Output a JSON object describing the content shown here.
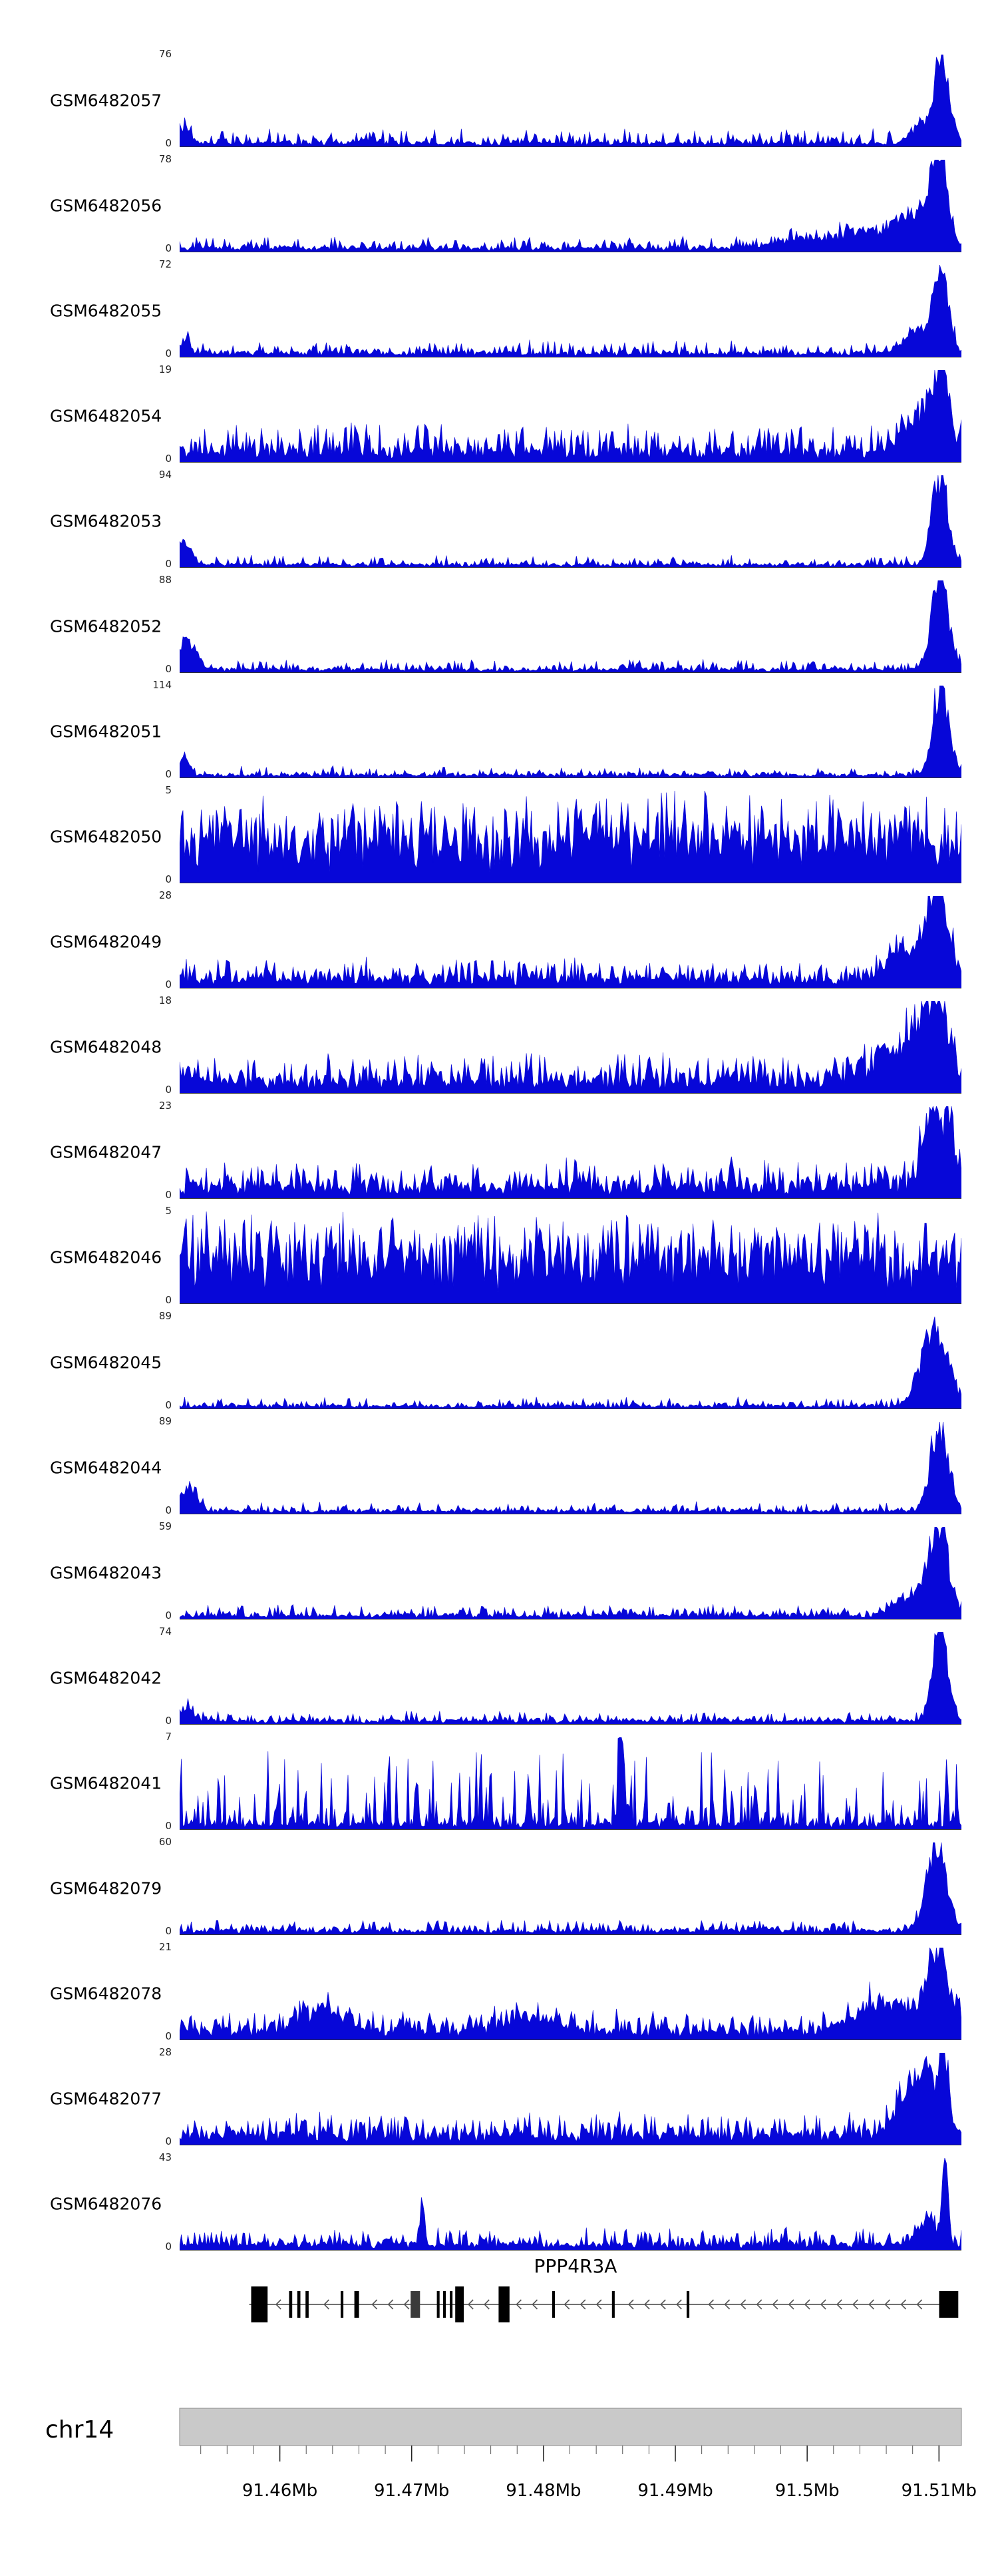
{
  "chart_data": {
    "type": "area",
    "description": "Genome browser read-coverage tracks (blue filled signal) for 21 GEO samples over chr14 ~91.45-91.51 Mb at the PPP4R3A locus, with gene model and genomic axis below.",
    "signal_color": "#0707d8",
    "y_zero_label": "0",
    "tracks": [
      {
        "label": "GSM6482057",
        "ymax": "76",
        "seed": 1,
        "base": 0.05,
        "spike_amp": 0.14,
        "spike_pow": 4.0,
        "peaks": [
          {
            "pos": 0.975,
            "w": 0.009,
            "h": 1.05
          },
          {
            "pos": 0.948,
            "w": 0.012,
            "h": 0.22
          },
          {
            "pos": 0.007,
            "w": 0.006,
            "h": 0.18
          }
        ]
      },
      {
        "label": "GSM6482056",
        "ymax": "78",
        "seed": 2,
        "base": 0.05,
        "spike_amp": 0.12,
        "spike_pow": 4.0,
        "peaks": [
          {
            "pos": 0.972,
            "w": 0.01,
            "h": 1.05
          },
          {
            "pos": 0.938,
            "w": 0.025,
            "h": 0.38
          },
          {
            "pos": 0.87,
            "w": 0.03,
            "h": 0.18
          },
          {
            "pos": 0.79,
            "w": 0.025,
            "h": 0.1
          }
        ]
      },
      {
        "label": "GSM6482055",
        "ymax": "72",
        "seed": 3,
        "base": 0.05,
        "spike_amp": 0.13,
        "spike_pow": 4.0,
        "peaks": [
          {
            "pos": 0.974,
            "w": 0.009,
            "h": 1.05
          },
          {
            "pos": 0.945,
            "w": 0.015,
            "h": 0.28
          },
          {
            "pos": 0.006,
            "w": 0.006,
            "h": 0.15
          }
        ]
      },
      {
        "label": "GSM6482054",
        "ymax": "19",
        "seed": 4,
        "base": 0.13,
        "spike_amp": 0.3,
        "spike_pow": 2.6,
        "peaks": [
          {
            "pos": 0.976,
            "w": 0.008,
            "h": 1.0
          },
          {
            "pos": 0.95,
            "w": 0.02,
            "h": 0.45
          }
        ]
      },
      {
        "label": "GSM6482053",
        "ymax": "94",
        "seed": 5,
        "base": 0.035,
        "spike_amp": 0.1,
        "spike_pow": 4.5,
        "peaks": [
          {
            "pos": 0.973,
            "w": 0.01,
            "h": 1.05
          },
          {
            "pos": 0.006,
            "w": 0.008,
            "h": 0.3
          }
        ]
      },
      {
        "label": "GSM6482052",
        "ymax": "88",
        "seed": 6,
        "base": 0.04,
        "spike_amp": 0.1,
        "spike_pow": 4.5,
        "peaks": [
          {
            "pos": 0.973,
            "w": 0.011,
            "h": 1.05
          },
          {
            "pos": 0.01,
            "w": 0.012,
            "h": 0.3
          }
        ]
      },
      {
        "label": "GSM6482051",
        "ymax": "114",
        "seed": 7,
        "base": 0.035,
        "spike_amp": 0.09,
        "spike_pow": 5.0,
        "peaks": [
          {
            "pos": 0.974,
            "w": 0.01,
            "h": 1.05
          },
          {
            "pos": 0.006,
            "w": 0.006,
            "h": 0.22
          }
        ]
      },
      {
        "label": "GSM6482050",
        "ymax": "5",
        "seed": 8,
        "base": 0.42,
        "spike_amp": 0.55,
        "spike_pow": 1.25,
        "peaks": []
      },
      {
        "label": "GSM6482049",
        "ymax": "28",
        "seed": 9,
        "base": 0.11,
        "spike_amp": 0.22,
        "spike_pow": 2.6,
        "peaks": [
          {
            "pos": 0.97,
            "w": 0.013,
            "h": 1.0
          },
          {
            "pos": 0.93,
            "w": 0.025,
            "h": 0.3
          }
        ]
      },
      {
        "label": "GSM6482048",
        "ymax": "18",
        "seed": 10,
        "base": 0.14,
        "spike_amp": 0.3,
        "spike_pow": 2.3,
        "peaks": [
          {
            "pos": 0.968,
            "w": 0.015,
            "h": 0.85
          },
          {
            "pos": 0.93,
            "w": 0.03,
            "h": 0.45
          }
        ]
      },
      {
        "label": "GSM6482047",
        "ymax": "23",
        "seed": 11,
        "base": 0.14,
        "spike_amp": 0.3,
        "spike_pow": 2.3,
        "peaks": [
          {
            "pos": 0.962,
            "w": 0.012,
            "h": 0.9
          },
          {
            "pos": 0.985,
            "w": 0.007,
            "h": 0.8
          }
        ]
      },
      {
        "label": "GSM6482046",
        "ymax": "5",
        "seed": 12,
        "base": 0.42,
        "spike_amp": 0.55,
        "spike_pow": 1.25,
        "peaks": [
          {
            "pos": 0.55,
            "w": 0.003,
            "h": 0.35
          },
          {
            "pos": 0.27,
            "w": 0.003,
            "h": 0.3
          }
        ]
      },
      {
        "label": "GSM6482045",
        "ymax": "89",
        "seed": 13,
        "base": 0.035,
        "spike_amp": 0.09,
        "spike_pow": 4.5,
        "peaks": [
          {
            "pos": 0.966,
            "w": 0.016,
            "h": 1.0
          }
        ]
      },
      {
        "label": "GSM6482044",
        "ymax": "89",
        "seed": 14,
        "base": 0.04,
        "spike_amp": 0.09,
        "spike_pow": 4.5,
        "peaks": [
          {
            "pos": 0.972,
            "w": 0.011,
            "h": 1.05
          },
          {
            "pos": 0.012,
            "w": 0.01,
            "h": 0.26
          }
        ]
      },
      {
        "label": "GSM6482043",
        "ymax": "59",
        "seed": 15,
        "base": 0.05,
        "spike_amp": 0.11,
        "spike_pow": 4.0,
        "peaks": [
          {
            "pos": 0.971,
            "w": 0.012,
            "h": 1.05
          },
          {
            "pos": 0.935,
            "w": 0.02,
            "h": 0.2
          }
        ]
      },
      {
        "label": "GSM6482042",
        "ymax": "74",
        "seed": 16,
        "base": 0.045,
        "spike_amp": 0.1,
        "spike_pow": 4.5,
        "peaks": [
          {
            "pos": 0.973,
            "w": 0.01,
            "h": 1.05
          },
          {
            "pos": 0.008,
            "w": 0.008,
            "h": 0.15
          }
        ]
      },
      {
        "label": "GSM6482041",
        "ymax": "7",
        "seed": 17,
        "base": 0.07,
        "spike_amp": 0.8,
        "spike_pow": 5.5,
        "peaks": [
          {
            "pos": 0.565,
            "w": 0.0035,
            "h": 0.9
          }
        ]
      },
      {
        "label": "GSM6482079",
        "ymax": "60",
        "seed": 18,
        "base": 0.05,
        "spike_amp": 0.12,
        "spike_pow": 3.8,
        "peaks": [
          {
            "pos": 0.968,
            "w": 0.012,
            "h": 1.05
          }
        ]
      },
      {
        "label": "GSM6482078",
        "ymax": "21",
        "seed": 19,
        "base": 0.11,
        "spike_amp": 0.22,
        "spike_pow": 2.6,
        "peaks": [
          {
            "pos": 0.97,
            "w": 0.014,
            "h": 0.95
          },
          {
            "pos": 0.9,
            "w": 0.035,
            "h": 0.3
          },
          {
            "pos": 0.18,
            "w": 0.03,
            "h": 0.22
          },
          {
            "pos": 0.45,
            "w": 0.03,
            "h": 0.15
          }
        ]
      },
      {
        "label": "GSM6482077",
        "ymax": "28",
        "seed": 20,
        "base": 0.11,
        "spike_amp": 0.24,
        "spike_pow": 2.6,
        "peaks": [
          {
            "pos": 0.977,
            "w": 0.005,
            "h": 1.0
          },
          {
            "pos": 0.955,
            "w": 0.018,
            "h": 0.5
          },
          {
            "pos": 0.93,
            "w": 0.02,
            "h": 0.3
          }
        ]
      },
      {
        "label": "GSM6482076",
        "ymax": "43",
        "seed": 21,
        "base": 0.07,
        "spike_amp": 0.18,
        "spike_pow": 3.2,
        "peaks": [
          {
            "pos": 0.979,
            "w": 0.004,
            "h": 1.05
          },
          {
            "pos": 0.31,
            "w": 0.003,
            "h": 0.45
          },
          {
            "pos": 0.955,
            "w": 0.01,
            "h": 0.3
          }
        ]
      }
    ],
    "gene": {
      "name": "PPP4R3A",
      "strand": "-",
      "line_span": [
        0.089,
        0.994
      ],
      "exons": [
        {
          "x": 0.0915,
          "w": 0.021,
          "h": "t",
          "c": "#000000"
        },
        {
          "x": 0.14,
          "w": 0.004,
          "h": "s",
          "c": "#000000"
        },
        {
          "x": 0.1505,
          "w": 0.004,
          "h": "s",
          "c": "#000000"
        },
        {
          "x": 0.161,
          "w": 0.004,
          "h": "s",
          "c": "#000000"
        },
        {
          "x": 0.206,
          "w": 0.0035,
          "h": "s",
          "c": "#000000"
        },
        {
          "x": 0.2235,
          "w": 0.006,
          "h": "s",
          "c": "#000000"
        },
        {
          "x": 0.2955,
          "w": 0.012,
          "h": "s",
          "c": "#3a3a3a"
        },
        {
          "x": 0.329,
          "w": 0.0035,
          "h": "s",
          "c": "#000000"
        },
        {
          "x": 0.337,
          "w": 0.0035,
          "h": "s",
          "c": "#000000"
        },
        {
          "x": 0.3455,
          "w": 0.0035,
          "h": "s",
          "c": "#000000"
        },
        {
          "x": 0.3525,
          "w": 0.011,
          "h": "t",
          "c": "#000000"
        },
        {
          "x": 0.408,
          "w": 0.014,
          "h": "t",
          "c": "#000000"
        },
        {
          "x": 0.4765,
          "w": 0.0035,
          "h": "s",
          "c": "#000000"
        },
        {
          "x": 0.553,
          "w": 0.0035,
          "h": "s",
          "c": "#000000"
        },
        {
          "x": 0.6485,
          "w": 0.0035,
          "h": "s",
          "c": "#000000"
        },
        {
          "x": 0.9715,
          "w": 0.0245,
          "h": "s",
          "c": "#000000"
        }
      ]
    },
    "axis": {
      "chrom": "chr14",
      "region_mb": [
        91.4524,
        91.5117
      ],
      "minor_start": 91.454,
      "minor_step": 0.002,
      "minor_end": 91.51,
      "major_ticks": [
        {
          "mb": 91.46,
          "label": "91.46Mb"
        },
        {
          "mb": 91.47,
          "label": "91.47Mb"
        },
        {
          "mb": 91.48,
          "label": "91.48Mb"
        },
        {
          "mb": 91.49,
          "label": "91.49Mb"
        },
        {
          "mb": 91.5,
          "label": "91.5Mb"
        },
        {
          "mb": 91.51,
          "label": "91.51Mb"
        }
      ]
    }
  }
}
